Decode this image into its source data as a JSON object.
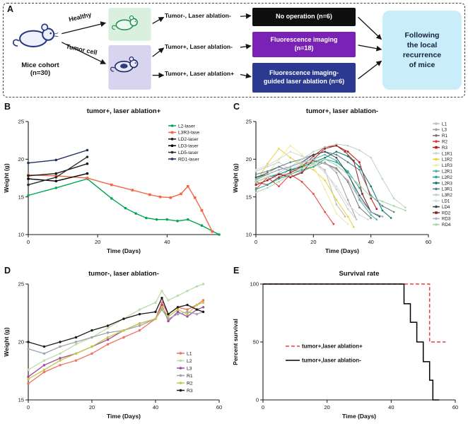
{
  "panels": {
    "A": "A",
    "B": "B",
    "C": "C",
    "D": "D",
    "E": "E"
  },
  "panelA": {
    "cohort": "Mice cohort\n(n=30)",
    "healthy_label": "Healthy",
    "tumor_label": "Tumor cell",
    "branch_top": "Tumor-, Laser ablation-",
    "branch_mid": "Tumor+, Laser ablation-",
    "branch_bot": "Tumor+, Laser ablation+",
    "box_no_operation": "No operation (n=6)",
    "box_fluorescence": "Fluorescence imaging\n(n=18)",
    "box_guided": "Fluorescence imaging-\nguided laser ablation  (n=6)",
    "outcome": "Following\nthe local\nrecurrence\nof mice",
    "colors": {
      "no_operation_bg": "#0f0f10",
      "fluorescence_bg": "#7a22b5",
      "guided_bg": "#2b3a90",
      "outcome_bg": "#c9edf9",
      "healthy_img_bg": "#d9f0de",
      "tumor_img_bg": "#d8d3ef"
    }
  },
  "chart_data": [
    {
      "id": "chartB",
      "type": "line",
      "title": "tumor+, laser ablation+",
      "xlabel": "Time (Days)",
      "ylabel": "Weight (g)",
      "xlim": [
        0,
        55
      ],
      "ylim": [
        10,
        25
      ],
      "xticks": [
        0,
        20,
        40
      ],
      "yticks": [
        10,
        15,
        20,
        25
      ],
      "legend_position": "inside-top-right",
      "series": [
        {
          "name": "L2-laser",
          "color": "#00A651",
          "marker": "circle",
          "x": [
            0,
            8,
            17,
            24,
            28,
            31,
            34,
            37,
            40,
            43,
            46,
            50,
            55
          ],
          "y": [
            15.2,
            16.2,
            17.4,
            14.8,
            13.5,
            12.8,
            12.2,
            12.0,
            12.0,
            11.8,
            12.0,
            11.2,
            10.0
          ]
        },
        {
          "name": "L3R3-lase",
          "color": "#F26649",
          "marker": "square",
          "x": [
            0,
            8,
            17,
            24,
            30,
            35,
            38,
            41,
            44,
            46,
            48,
            50,
            53
          ],
          "y": [
            17.9,
            17.8,
            17.5,
            16.6,
            15.9,
            15.3,
            15.0,
            14.9,
            15.4,
            16.4,
            14.9,
            13.2,
            10.4
          ]
        },
        {
          "name": "LD2-laser",
          "color": "#1a1a1a",
          "marker": "circle",
          "x": [
            0,
            8,
            17
          ],
          "y": [
            17.8,
            18.1,
            19.4
          ]
        },
        {
          "name": "LD3-laser",
          "color": "#000000",
          "marker": "circle",
          "x": [
            0,
            8,
            17
          ],
          "y": [
            17.4,
            17.1,
            18.1
          ]
        },
        {
          "name": "LD5-laser",
          "color": "#2b2b2b",
          "marker": "circle",
          "x": [
            0,
            8,
            17
          ],
          "y": [
            16.6,
            17.6,
            20.3
          ]
        },
        {
          "name": "RD1-laser",
          "color": "#20315f",
          "marker": "circle",
          "x": [
            0,
            8,
            17
          ],
          "y": [
            19.5,
            19.9,
            21.2
          ]
        }
      ]
    },
    {
      "id": "chartC",
      "type": "line",
      "title": "tumor+, laser ablation-",
      "xlabel": "Time (Days)",
      "ylabel": "Weight (g)",
      "xlim": [
        0,
        60
      ],
      "ylim": [
        10,
        25
      ],
      "xticks": [
        0,
        20,
        40,
        60
      ],
      "yticks": [
        10,
        15,
        20,
        25
      ],
      "legend_position": "right",
      "series": [
        {
          "name": "L1",
          "color": "#BDBDBD",
          "marker": "circle",
          "x": [
            0,
            4,
            8,
            12,
            16,
            20,
            24,
            28,
            31
          ],
          "y": [
            17.2,
            18.0,
            17.4,
            18.8,
            18.2,
            19.4,
            18.6,
            14.0,
            12.4
          ]
        },
        {
          "name": "L3",
          "color": "#9E9E9E",
          "marker": "circle",
          "x": [
            0,
            4,
            8,
            12,
            16,
            20,
            24,
            28,
            32,
            35
          ],
          "y": [
            16.6,
            17.2,
            18.1,
            17.6,
            18.4,
            19.0,
            19.6,
            18.2,
            14.6,
            12.0
          ]
        },
        {
          "name": "R1",
          "color": "#757575",
          "marker": "circle",
          "x": [
            0,
            4,
            8,
            12,
            16,
            20,
            24,
            28,
            32,
            36,
            40
          ],
          "y": [
            17.6,
            18.2,
            19.0,
            18.4,
            19.2,
            19.8,
            19.4,
            18.8,
            17.0,
            13.6,
            12.2
          ]
        },
        {
          "name": "R2",
          "color": "#E53935",
          "marker": "circle",
          "x": [
            0,
            4,
            8,
            12,
            16,
            20,
            24,
            27
          ],
          "y": [
            16.0,
            17.6,
            16.4,
            18.0,
            17.0,
            15.4,
            13.0,
            11.4
          ]
        },
        {
          "name": "R3",
          "color": "#B71C1C",
          "marker": "square",
          "x": [
            0,
            4,
            8,
            12,
            16,
            20,
            24,
            28,
            32,
            36,
            40,
            42
          ],
          "y": [
            17.0,
            16.6,
            17.6,
            18.2,
            19.0,
            20.4,
            21.6,
            21.8,
            21.0,
            19.6,
            14.8,
            13.4
          ]
        },
        {
          "name": "L1R1",
          "color": "#CFCFCF",
          "marker": "circle",
          "x": [
            0,
            4,
            8,
            12,
            16,
            20,
            24,
            28,
            32,
            35
          ],
          "y": [
            18.4,
            19.0,
            19.6,
            18.6,
            19.4,
            20.0,
            18.4,
            16.0,
            13.4,
            12.0
          ]
        },
        {
          "name": "L1R2",
          "color": "#E6D23C",
          "marker": "circle",
          "x": [
            0,
            4,
            8,
            12,
            16,
            20,
            24,
            28,
            32,
            34
          ],
          "y": [
            17.0,
            19.4,
            21.4,
            20.2,
            19.2,
            18.6,
            17.2,
            14.6,
            12.4,
            11.0
          ]
        },
        {
          "name": "L1R3",
          "color": "#F0EAA8",
          "marker": "circle",
          "x": [
            0,
            4,
            8,
            12,
            16,
            20,
            24,
            28,
            32
          ],
          "y": [
            16.4,
            18.0,
            20.0,
            21.8,
            20.6,
            19.2,
            16.0,
            12.8,
            11.4
          ]
        },
        {
          "name": "L2R1",
          "color": "#4DB6AC",
          "marker": "circle",
          "x": [
            0,
            4,
            8,
            12,
            16,
            20,
            24,
            28,
            32,
            36,
            40,
            42
          ],
          "y": [
            17.4,
            18.0,
            18.6,
            19.0,
            19.6,
            20.0,
            20.6,
            19.8,
            18.2,
            14.6,
            12.6,
            12.0
          ]
        },
        {
          "name": "L2R2",
          "color": "#26A69A",
          "marker": "circle",
          "x": [
            0,
            4,
            8,
            12,
            16,
            20,
            24,
            28,
            32,
            36,
            40,
            44
          ],
          "y": [
            16.0,
            16.6,
            17.4,
            18.0,
            18.6,
            19.0,
            20.0,
            19.6,
            18.4,
            16.2,
            13.0,
            12.4
          ]
        },
        {
          "name": "L2R3",
          "color": "#00796B",
          "marker": "circle",
          "x": [
            0,
            4,
            8,
            12,
            16,
            20,
            24,
            28,
            32,
            36,
            40,
            44,
            47
          ],
          "y": [
            17.0,
            17.6,
            18.0,
            18.6,
            19.0,
            19.6,
            20.2,
            21.0,
            20.4,
            19.0,
            16.4,
            13.2,
            12.2
          ]
        },
        {
          "name": "L3R1",
          "color": "#607D8B",
          "marker": "circle",
          "x": [
            0,
            4,
            8,
            12,
            16,
            20,
            24,
            28,
            32,
            36,
            40,
            44,
            48
          ],
          "y": [
            18.0,
            18.4,
            19.0,
            19.6,
            20.0,
            20.6,
            21.0,
            20.6,
            19.6,
            18.6,
            15.2,
            13.8,
            13.0
          ]
        },
        {
          "name": "L3R2",
          "color": "#BBD3C4",
          "marker": "circle",
          "x": [
            0,
            4,
            8,
            12,
            16,
            20,
            24,
            28,
            32,
            36,
            40,
            44,
            48,
            52
          ],
          "y": [
            17.0,
            17.6,
            18.2,
            19.0,
            20.0,
            21.0,
            21.6,
            22.0,
            21.8,
            21.2,
            20.2,
            17.4,
            14.8,
            13.6
          ]
        },
        {
          "name": "LD1",
          "color": "#D7DBDD",
          "marker": "circle",
          "x": [
            0,
            4,
            8,
            12,
            16,
            20,
            24,
            28,
            32,
            36,
            39
          ],
          "y": [
            18.6,
            19.2,
            20.0,
            21.0,
            20.4,
            19.6,
            18.2,
            16.4,
            14.0,
            12.6,
            12.0
          ]
        },
        {
          "name": "LD4",
          "color": "#37474F",
          "marker": "circle",
          "x": [
            0,
            4,
            8,
            12,
            16,
            20,
            24,
            28,
            32,
            36,
            40,
            43
          ],
          "y": [
            17.6,
            18.0,
            18.6,
            19.0,
            19.6,
            20.6,
            21.0,
            20.2,
            18.0,
            15.2,
            13.0,
            12.4
          ]
        },
        {
          "name": "RD2",
          "color": "#8E2323",
          "marker": "square",
          "x": [
            0,
            4,
            8,
            12,
            16,
            20,
            24,
            28,
            31,
            34,
            37,
            40
          ],
          "y": [
            16.6,
            17.2,
            18.0,
            17.6,
            18.2,
            20.0,
            21.4,
            21.8,
            21.0,
            19.8,
            15.4,
            13.0
          ]
        },
        {
          "name": "RD3",
          "color": "#AEB6BF",
          "marker": "circle",
          "x": [
            0,
            4,
            8,
            12,
            16,
            20,
            24,
            28,
            32,
            36,
            40,
            44
          ],
          "y": [
            17.2,
            18.0,
            18.6,
            19.0,
            19.6,
            20.0,
            19.4,
            18.6,
            17.2,
            14.8,
            13.0,
            12.4
          ]
        },
        {
          "name": "RD4",
          "color": "#A5D6A7",
          "marker": "circle",
          "x": [
            0,
            4,
            8,
            12,
            16,
            20,
            24,
            28,
            32,
            36,
            40,
            44,
            48,
            52
          ],
          "y": [
            15.6,
            16.2,
            17.0,
            18.0,
            18.8,
            19.4,
            20.0,
            19.2,
            18.0,
            16.6,
            15.0,
            14.4,
            13.8,
            13.2
          ]
        }
      ]
    },
    {
      "id": "chartD",
      "type": "line",
      "title": "tumor-, laser ablation-",
      "xlabel": "Time (Days)",
      "ylabel": "Weight (g)",
      "xlim": [
        0,
        60
      ],
      "ylim": [
        15,
        25
      ],
      "xticks": [
        0,
        20,
        40,
        60
      ],
      "yticks": [
        15,
        20,
        25
      ],
      "legend_position": "inside-bottom-right",
      "series": [
        {
          "name": "L1",
          "color": "#F1705F",
          "marker": "circle",
          "x": [
            0,
            5,
            10,
            15,
            20,
            25,
            30,
            35,
            40,
            42,
            44,
            47,
            50,
            53,
            55
          ],
          "y": [
            16.4,
            17.4,
            18.0,
            18.4,
            19.0,
            19.8,
            20.4,
            21.0,
            22.0,
            23.4,
            22.4,
            23.0,
            22.8,
            23.2,
            23.6
          ]
        },
        {
          "name": "L2",
          "color": "#BCDCAC",
          "marker": "circle",
          "x": [
            0,
            5,
            10,
            15,
            20,
            25,
            30,
            35,
            40,
            42,
            44,
            47,
            50,
            53,
            55
          ],
          "y": [
            17.6,
            18.4,
            19.0,
            19.8,
            20.4,
            21.2,
            22.0,
            22.8,
            23.4,
            24.4,
            23.6,
            24.0,
            24.4,
            24.8,
            25.0
          ]
        },
        {
          "name": "L3",
          "color": "#A0489B",
          "marker": "circle",
          "x": [
            0,
            5,
            10,
            15,
            20,
            25,
            30,
            35,
            40,
            42,
            44,
            47,
            50,
            53,
            55
          ],
          "y": [
            17.0,
            18.0,
            18.6,
            19.0,
            19.6,
            20.2,
            21.0,
            21.6,
            22.0,
            23.2,
            21.8,
            22.6,
            22.2,
            22.8,
            23.0
          ]
        },
        {
          "name": "R1",
          "color": "#9EA3A8",
          "marker": "circle",
          "x": [
            0,
            5,
            10,
            15,
            20,
            25,
            30,
            35,
            40,
            42,
            44,
            47,
            50,
            53,
            55
          ],
          "y": [
            19.4,
            19.0,
            19.6,
            20.0,
            20.4,
            20.8,
            21.0,
            21.4,
            22.0,
            22.8,
            22.0,
            22.4,
            22.6,
            22.4,
            22.6
          ]
        },
        {
          "name": "R2",
          "color": "#C0C94B",
          "marker": "circle",
          "x": [
            0,
            5,
            10,
            15,
            20,
            25,
            30,
            35,
            40,
            42,
            44,
            47,
            50,
            53,
            55
          ],
          "y": [
            16.8,
            17.6,
            18.4,
            19.0,
            19.6,
            20.4,
            21.0,
            21.6,
            22.0,
            23.0,
            22.2,
            22.8,
            22.4,
            23.2,
            23.4
          ]
        },
        {
          "name": "R3",
          "color": "#1a1a1a",
          "marker": "circle",
          "x": [
            0,
            5,
            10,
            15,
            20,
            25,
            30,
            35,
            40,
            42,
            44,
            47,
            50,
            53,
            55
          ],
          "y": [
            20.0,
            19.6,
            20.0,
            20.4,
            21.0,
            21.4,
            22.0,
            22.4,
            22.6,
            23.8,
            22.4,
            23.0,
            23.2,
            22.8,
            22.6
          ]
        }
      ]
    },
    {
      "id": "chartE",
      "type": "line",
      "title": "Survival rate",
      "xlabel": "Time (Days)",
      "ylabel": "Percent survival",
      "xlim": [
        0,
        60
      ],
      "ylim": [
        0,
        100
      ],
      "xticks": [
        0,
        20,
        40,
        60
      ],
      "yticks": [
        0,
        50,
        100
      ],
      "legend_position": "inside-left",
      "series": [
        {
          "name": "tumor+,laser ablation+",
          "color": "#E8413C",
          "marker": "none",
          "dash": "5,3",
          "x": [
            0,
            52,
            52,
            57
          ],
          "y": [
            100,
            100,
            50,
            50
          ]
        },
        {
          "name": "tumor+,laser ablation-",
          "color": "#000000",
          "marker": "none",
          "x": [
            0,
            44,
            44,
            46,
            46,
            48,
            48,
            50,
            50,
            52,
            52,
            53,
            53,
            55
          ],
          "y": [
            100,
            100,
            83,
            83,
            67,
            67,
            50,
            50,
            33,
            33,
            17,
            17,
            0,
            0
          ]
        }
      ]
    }
  ]
}
